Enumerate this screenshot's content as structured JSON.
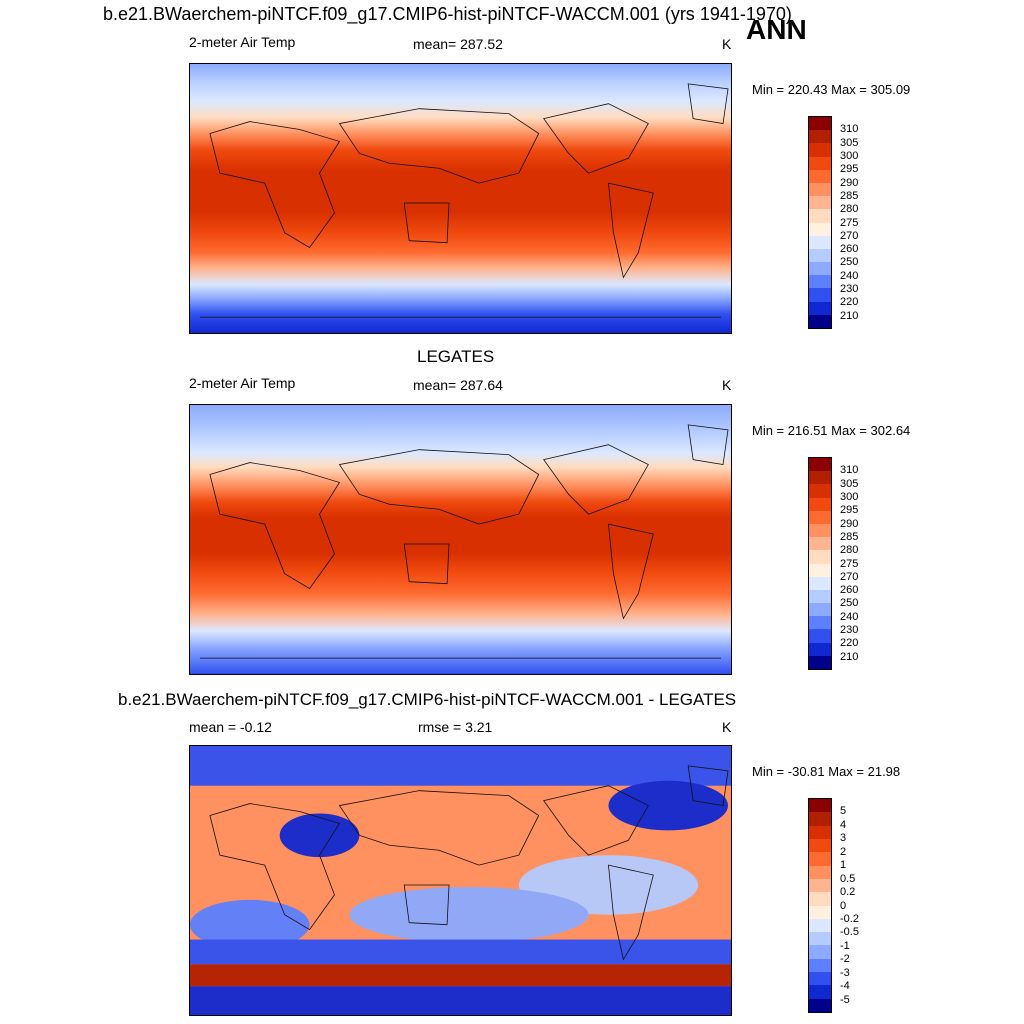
{
  "header": {
    "case_title": "b.e21.BWaerchem-piNTCF.f09_g17.CMIP6-hist-piNTCF-WACCM.001 (yrs 1941-1970)",
    "season": "ANN"
  },
  "panels": [
    {
      "title": "",
      "variable": "2-meter Air Temp",
      "stat": "mean= 287.52",
      "stat2": "",
      "units": "K",
      "minmax": "Min = 220.43 Max = 305.09",
      "colorbar_labels": [
        "310",
        "305",
        "300",
        "295",
        "290",
        "285",
        "280",
        "275",
        "270",
        "260",
        "250",
        "240",
        "230",
        "220",
        "210"
      ]
    },
    {
      "title": "LEGATES",
      "variable": "2-meter Air Temp",
      "stat": "mean= 287.64",
      "stat2": "",
      "units": "K",
      "minmax": "Min = 216.51 Max = 302.64",
      "colorbar_labels": [
        "310",
        "305",
        "300",
        "295",
        "290",
        "285",
        "280",
        "275",
        "270",
        "260",
        "250",
        "240",
        "230",
        "220",
        "210"
      ]
    },
    {
      "title": "b.e21.BWaerchem-piNTCF.f09_g17.CMIP6-hist-piNTCF-WACCM.001 - LEGATES",
      "variable": "mean =  -0.12",
      "stat": "rmse =   3.21",
      "stat2": "",
      "units": "K",
      "minmax": "Min = -30.81 Max =  21.98",
      "colorbar_labels": [
        "5",
        "4",
        "3",
        "2",
        "1",
        "0.5",
        "0.2",
        "0",
        "-0.2",
        "-0.5",
        "-1",
        "-2",
        "-3",
        "-4",
        "-5"
      ]
    }
  ],
  "colorbar_colors": [
    "#8b0000",
    "#b22000",
    "#d83000",
    "#f04a10",
    "#ff6a30",
    "#ff9060",
    "#ffb490",
    "#ffdcc0",
    "#fff0e0",
    "#dce8ff",
    "#b4ccff",
    "#8caaff",
    "#5c80ff",
    "#3050f0",
    "#1028d0",
    "#00008b"
  ]
}
